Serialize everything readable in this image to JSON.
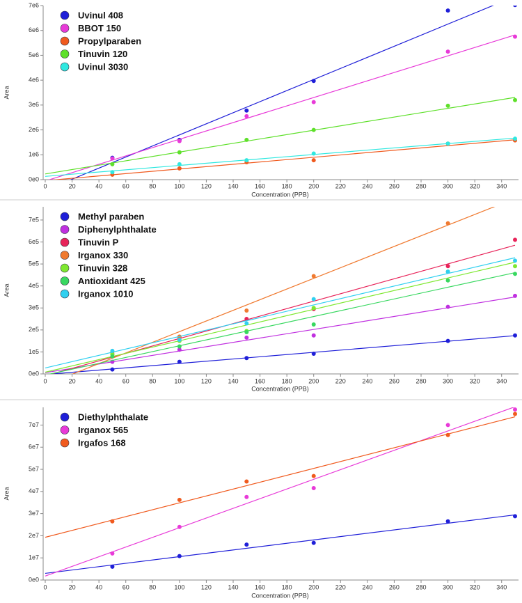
{
  "chart_data": [
    {
      "type": "scatter",
      "xlabel": "Concentration (PPB)",
      "ylabel": "Area",
      "fit_line": true,
      "x": [
        50,
        100,
        150,
        200,
        300,
        350
      ],
      "xlim": [
        0,
        350
      ],
      "xticks": [
        0,
        20,
        40,
        60,
        80,
        100,
        120,
        140,
        160,
        180,
        200,
        220,
        240,
        260,
        280,
        300,
        320,
        340
      ],
      "ylim": [
        0,
        7000000
      ],
      "yticks": [
        {
          "value": 0,
          "label": "0e0"
        },
        {
          "value": 1000000,
          "label": "1e6"
        },
        {
          "value": 2000000,
          "label": "2e6"
        },
        {
          "value": 3000000,
          "label": "3e6"
        },
        {
          "value": 4000000,
          "label": "4e6"
        },
        {
          "value": 5000000,
          "label": "5e6"
        },
        {
          "value": 6000000,
          "label": "6e6"
        },
        {
          "value": 7000000,
          "label": "7e6"
        }
      ],
      "series": [
        {
          "name": "Uvinul 408",
          "color": "#1f1fd8",
          "values": [
            880000,
            1600000,
            2780000,
            3970000,
            6800000,
            7020000
          ]
        },
        {
          "name": "BBOT 150",
          "color": "#e83ad8",
          "values": [
            850000,
            1550000,
            2550000,
            3120000,
            5150000,
            5750000
          ]
        },
        {
          "name": "Propylparaben",
          "color": "#f05a1e",
          "values": [
            200000,
            450000,
            700000,
            780000,
            1450000,
            1580000
          ]
        },
        {
          "name": "Tinuvin 120",
          "color": "#5ee02a",
          "values": [
            620000,
            1100000,
            1600000,
            2000000,
            2970000,
            3200000
          ]
        },
        {
          "name": "Uvinul 3030",
          "color": "#30e8e0",
          "values": [
            300000,
            620000,
            780000,
            1050000,
            1450000,
            1650000
          ]
        }
      ]
    },
    {
      "type": "scatter",
      "xlabel": "Concentration (PPB)",
      "ylabel": "Area",
      "fit_line": true,
      "x": [
        50,
        100,
        150,
        200,
        300,
        350
      ],
      "xlim": [
        0,
        350
      ],
      "xticks": [
        0,
        20,
        40,
        60,
        80,
        100,
        120,
        140,
        160,
        180,
        200,
        220,
        240,
        260,
        280,
        300,
        320,
        340
      ],
      "ylim": [
        0,
        760000
      ],
      "yticks": [
        {
          "value": 0,
          "label": "0e0"
        },
        {
          "value": 100000,
          "label": "1e5"
        },
        {
          "value": 200000,
          "label": "2e5"
        },
        {
          "value": 300000,
          "label": "3e5"
        },
        {
          "value": 400000,
          "label": "4e5"
        },
        {
          "value": 500000,
          "label": "5e5"
        },
        {
          "value": 600000,
          "label": "6e5"
        },
        {
          "value": 700000,
          "label": "7e5"
        }
      ],
      "series": [
        {
          "name": "Methyl paraben",
          "color": "#1f1fd8",
          "values": [
            20000,
            55000,
            72000,
            92000,
            150000,
            175000
          ]
        },
        {
          "name": "Diphenylphthalate",
          "color": "#c030e0",
          "values": [
            55000,
            110000,
            165000,
            175000,
            305000,
            355000
          ]
        },
        {
          "name": "Tinuvin P",
          "color": "#e8245a",
          "values": [
            90000,
            165000,
            250000,
            295000,
            490000,
            610000
          ]
        },
        {
          "name": "Irganox 330",
          "color": "#f07a30",
          "values": [
            100000,
            170000,
            288000,
            445000,
            685000,
            null
          ]
        },
        {
          "name": "Tinuvin 328",
          "color": "#7ee830",
          "values": [
            90000,
            150000,
            195000,
            300000,
            465000,
            490000
          ]
        },
        {
          "name": "Antioxidant 425",
          "color": "#38d860",
          "values": [
            80000,
            125000,
            190000,
            225000,
            425000,
            455000
          ]
        },
        {
          "name": "Irganox 1010",
          "color": "#30d0f0",
          "values": [
            105000,
            155000,
            230000,
            340000,
            465000,
            515000
          ]
        }
      ]
    },
    {
      "type": "scatter",
      "xlabel": "Concentration (PPB)",
      "ylabel": "Area",
      "fit_line": true,
      "x": [
        50,
        100,
        150,
        200,
        300,
        350
      ],
      "xlim": [
        0,
        350
      ],
      "xticks": [
        0,
        20,
        40,
        60,
        80,
        100,
        120,
        140,
        160,
        180,
        200,
        220,
        240,
        260,
        280,
        300,
        320,
        340
      ],
      "ylim": [
        0,
        78000000
      ],
      "yticks": [
        {
          "value": 0,
          "label": "0e0"
        },
        {
          "value": 10000000,
          "label": "1e7"
        },
        {
          "value": 20000000,
          "label": "2e7"
        },
        {
          "value": 30000000,
          "label": "3e7"
        },
        {
          "value": 40000000,
          "label": "4e7"
        },
        {
          "value": 50000000,
          "label": "5e7"
        },
        {
          "value": 60000000,
          "label": "6e7"
        },
        {
          "value": 70000000,
          "label": "7e7"
        }
      ],
      "series": [
        {
          "name": "Diethylphthalate",
          "color": "#1f1fd8",
          "values": [
            6000000,
            10800000,
            16000000,
            16800000,
            26500000,
            28800000
          ]
        },
        {
          "name": "Irganox 565",
          "color": "#e83ad8",
          "values": [
            12000000,
            24000000,
            37500000,
            41500000,
            70000000,
            77000000
          ]
        },
        {
          "name": "Irgafos 168",
          "color": "#f05a1e",
          "values": [
            26500000,
            36200000,
            44500000,
            47000000,
            65500000,
            75000000
          ]
        }
      ]
    }
  ]
}
